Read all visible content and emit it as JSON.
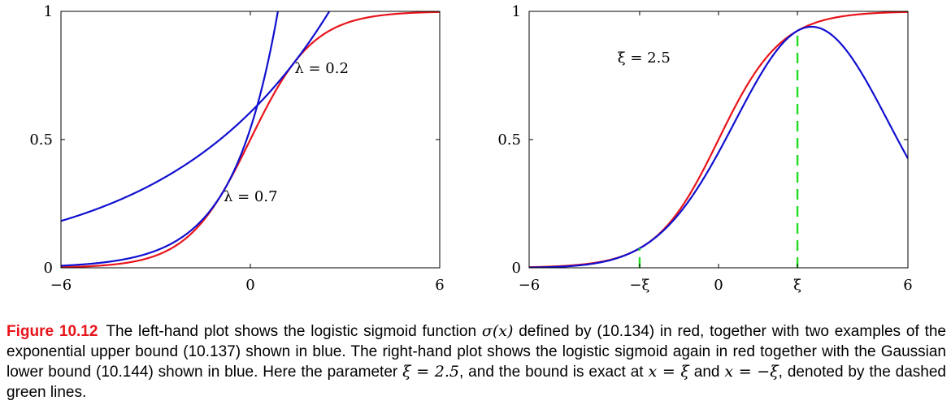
{
  "chart_data": [
    {
      "type": "line",
      "title": "",
      "xlabel": "",
      "ylabel": "",
      "xlim": [
        -6,
        6
      ],
      "ylim": [
        0,
        1
      ],
      "xticks": [
        {
          "value": -6,
          "label": "−6"
        },
        {
          "value": 0,
          "label": "0"
        },
        {
          "value": 6,
          "label": "6"
        }
      ],
      "yticks": [
        {
          "value": 0,
          "label": "0"
        },
        {
          "value": 0.5,
          "label": "0.5"
        },
        {
          "value": 1,
          "label": "1"
        }
      ],
      "series": [
        {
          "function": "sigmoid",
          "color": "#e8141b",
          "x": [
            -6,
            -5,
            -4,
            -3,
            -2,
            -1,
            0,
            1,
            2,
            3,
            4,
            5,
            6
          ],
          "y": [
            0.0025,
            0.0067,
            0.018,
            0.047,
            0.119,
            0.269,
            0.5,
            0.731,
            0.881,
            0.953,
            0.982,
            0.993,
            0.9975
          ]
        },
        {
          "function": "upper_bound",
          "lambda": 0.2,
          "color": "#1010d0",
          "x": [
            -6,
            -5,
            -4,
            -3,
            -2,
            -1,
            0,
            1,
            2,
            2.5
          ],
          "y": [
            0.18,
            0.22,
            0.27,
            0.32,
            0.39,
            0.48,
            0.58,
            0.71,
            0.87,
            0.96
          ]
        },
        {
          "function": "upper_bound",
          "lambda": 0.7,
          "color": "#1010d0",
          "x": [
            -6,
            -5,
            -4,
            -3,
            -2,
            -1,
            0,
            1,
            1.4
          ],
          "y": [
            0.01,
            0.02,
            0.04,
            0.07,
            0.14,
            0.28,
            0.55,
            0.86,
            1.0
          ]
        }
      ],
      "annotations": [
        {
          "text": "λ = 0.2",
          "x": 1.4,
          "y": 0.76
        },
        {
          "text": "λ = 0.7",
          "x": -0.85,
          "y": 0.26
        }
      ]
    },
    {
      "type": "line",
      "title": "",
      "xlabel": "",
      "ylabel": "",
      "xlim": [
        -6,
        6
      ],
      "ylim": [
        0,
        1
      ],
      "xticks": [
        {
          "value": -6,
          "label": "−6"
        },
        {
          "value": -2.5,
          "label": "−ξ"
        },
        {
          "value": 0,
          "label": "0"
        },
        {
          "value": 2.5,
          "label": "ξ"
        },
        {
          "value": 6,
          "label": "6"
        }
      ],
      "yticks": [
        {
          "value": 0,
          "label": "0"
        },
        {
          "value": 0.5,
          "label": "0.5"
        },
        {
          "value": 1,
          "label": "1"
        }
      ],
      "xi": 2.5,
      "series": [
        {
          "function": "sigmoid",
          "color": "#e8141b",
          "x": [
            -6,
            -5,
            -4,
            -3,
            -2,
            -1,
            0,
            1,
            2,
            3,
            4,
            5,
            6
          ],
          "y": [
            0.0025,
            0.0067,
            0.018,
            0.047,
            0.119,
            0.269,
            0.5,
            0.731,
            0.881,
            0.953,
            0.982,
            0.993,
            0.9975
          ]
        },
        {
          "function": "gaussian_lower_bound",
          "xi": 2.5,
          "color": "#1010d0",
          "x": [
            -6,
            -5,
            -4,
            -3,
            -2,
            -1,
            0,
            1,
            2,
            2.5,
            3,
            4,
            5,
            6
          ],
          "y": [
            0.001,
            0.004,
            0.013,
            0.04,
            0.106,
            0.24,
            0.45,
            0.69,
            0.87,
            0.924,
            0.94,
            0.86,
            0.66,
            0.43
          ]
        }
      ],
      "markers": [
        {
          "x": -2.5,
          "y_from": 0,
          "y_to": 0.076,
          "style": "dashed",
          "color": "#22dd22"
        },
        {
          "x": 2.5,
          "y_from": 0,
          "y_to": 0.924,
          "style": "dashed",
          "color": "#22dd22"
        }
      ],
      "annotations": [
        {
          "text": "ξ = 2.5",
          "x": -3.2,
          "y": 0.8
        }
      ]
    }
  ],
  "caption": {
    "label": "Figure 10.12",
    "text_parts": [
      {
        "t": "The left-hand plot shows the logistic sigmoid function "
      },
      {
        "t": "σ(x)",
        "math": true
      },
      {
        "t": " defined by (10.134) in red, together with two examples of the exponential upper bound (10.137) shown in blue. The right-hand plot shows the logistic sigmoid again in red together with the Gaussian lower bound (10.144) shown in blue.  Here the parameter "
      },
      {
        "t": "ξ = 2.5",
        "math": true
      },
      {
        "t": ", and the bound is exact at "
      },
      {
        "t": "x = ξ",
        "math": true
      },
      {
        "t": " and "
      },
      {
        "t": "x = −ξ",
        "math": true
      },
      {
        "t": ", denoted by the dashed green lines."
      }
    ]
  }
}
